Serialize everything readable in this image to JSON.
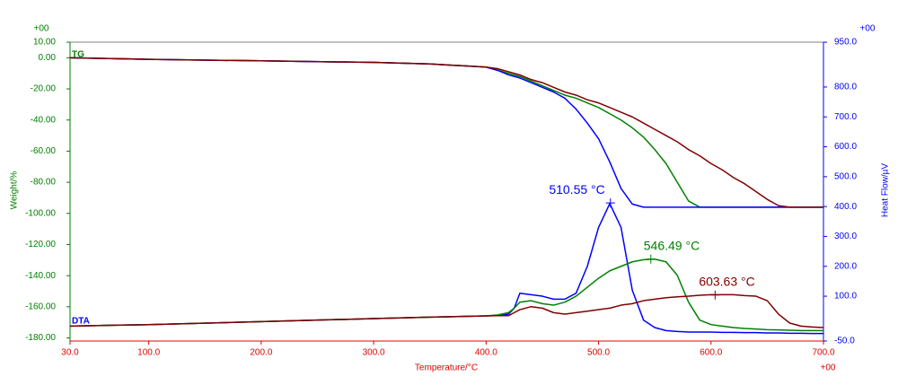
{
  "chart_data": {
    "type": "line",
    "x_axis_label": "Temperature/°C",
    "y_axis_label": "Weight/%",
    "y2_axis_label": "Heat Flow/µV",
    "x_exponent": "+00",
    "y_exponent": "+00",
    "y2_exponent": "+00",
    "tg_label": "TG",
    "dta_label": "DTA",
    "xlim": [
      30,
      700
    ],
    "ylim": [
      -182,
      10
    ],
    "y2lim": [
      -50,
      950
    ],
    "xticks": [
      {
        "value": 30,
        "label": "30.0"
      },
      {
        "value": 100,
        "label": "100.0"
      },
      {
        "value": 200,
        "label": "200.0"
      },
      {
        "value": 300,
        "label": "300.0"
      },
      {
        "value": 400,
        "label": "400.0"
      },
      {
        "value": 500,
        "label": "500.0"
      },
      {
        "value": 600,
        "label": "600.0"
      },
      {
        "value": 700,
        "label": "700.0"
      }
    ],
    "yticks": [
      {
        "value": 10,
        "label": "10.00"
      },
      {
        "value": 0,
        "label": "0.00"
      },
      {
        "value": -20,
        "label": "-20.00"
      },
      {
        "value": -40,
        "label": "-40.00"
      },
      {
        "value": -60,
        "label": "-60.00"
      },
      {
        "value": -80,
        "label": "-80.00"
      },
      {
        "value": -100,
        "label": "-100.00"
      },
      {
        "value": -120,
        "label": "-120.00"
      },
      {
        "value": -140,
        "label": "-140.00"
      },
      {
        "value": -160,
        "label": "-160.00"
      },
      {
        "value": -180,
        "label": "-180.00"
      }
    ],
    "y2ticks": [
      {
        "value": 950,
        "label": "950.0"
      },
      {
        "value": 800,
        "label": "800.0"
      },
      {
        "value": 700,
        "label": "700.0"
      },
      {
        "value": 600,
        "label": "600.0"
      },
      {
        "value": 500,
        "label": "500.0"
      },
      {
        "value": 400,
        "label": "400.0"
      },
      {
        "value": 300,
        "label": "300.0"
      },
      {
        "value": 200,
        "label": "200.0"
      },
      {
        "value": 100,
        "label": "100.0"
      },
      {
        "value": -50,
        "label": "-50.0"
      }
    ],
    "x": [
      30,
      100,
      200,
      300,
      350,
      400,
      410,
      420,
      425,
      430,
      440,
      450,
      460,
      470,
      480,
      490,
      500,
      510,
      520,
      530,
      540,
      550,
      560,
      570,
      580,
      590,
      600,
      610,
      620,
      630,
      640,
      650,
      660,
      670,
      680,
      690,
      700
    ],
    "series": [
      {
        "color": "#008000",
        "axis": "y",
        "values": [
          0,
          -1,
          -2,
          -3,
          -4,
          -6,
          -8,
          -10,
          -11,
          -12,
          -15,
          -18,
          -21,
          -24,
          -26,
          -29,
          -32,
          -36,
          -40,
          -45,
          -51,
          -59,
          -68,
          -80,
          -92,
          -96,
          -96,
          -96,
          -96,
          -96,
          -96,
          -96,
          -96,
          -96,
          -96,
          -96,
          -96
        ]
      },
      {
        "color": "#0000ff",
        "axis": "y",
        "values": [
          0,
          -1,
          -2,
          -3,
          -4,
          -6,
          -8,
          -11,
          -12,
          -13,
          -16,
          -19,
          -22,
          -26,
          -33,
          -42,
          -52,
          -67,
          -84,
          -94,
          -96,
          -96,
          -96,
          -96,
          -96,
          -96,
          -96,
          -96,
          -96,
          -96,
          -96,
          -96,
          -96,
          -96,
          -96,
          -96,
          -96
        ]
      },
      {
        "color": "#800000",
        "axis": "y",
        "values": [
          0,
          -1,
          -2,
          -3,
          -4,
          -6,
          -7,
          -9,
          -10,
          -11,
          -14,
          -16,
          -19,
          -22,
          -24,
          -27,
          -29,
          -32,
          -35,
          -38,
          -42,
          -46,
          -50,
          -54,
          -59,
          -63,
          -68,
          -72,
          -77,
          -81,
          -86,
          -91,
          -95,
          -96,
          -96,
          -96,
          -96
        ]
      },
      {
        "color": "#0000ff",
        "axis": "y2",
        "values": [
          0,
          5,
          15,
          25,
          30,
          34,
          36,
          40,
          60,
          110,
          105,
          100,
          90,
          90,
          110,
          200,
          330,
          410,
          330,
          120,
          20,
          -5,
          -15,
          -18,
          -20,
          -20,
          -20,
          -21,
          -21,
          -22,
          -22,
          -23,
          -23,
          -24,
          -24,
          -25,
          -25
        ]
      },
      {
        "color": "#008000",
        "axis": "y2",
        "values": [
          0,
          5,
          15,
          25,
          30,
          34,
          37,
          45,
          60,
          80,
          85,
          75,
          70,
          80,
          100,
          130,
          160,
          185,
          200,
          215,
          222,
          224,
          215,
          170,
          80,
          20,
          5,
          0,
          -5,
          -8,
          -10,
          -12,
          -13,
          -14,
          -15,
          -15,
          -15
        ]
      },
      {
        "color": "#800000",
        "axis": "y2",
        "values": [
          0,
          5,
          15,
          25,
          30,
          34,
          35,
          35,
          45,
          55,
          65,
          60,
          45,
          40,
          45,
          50,
          55,
          60,
          70,
          75,
          85,
          90,
          95,
          98,
          100,
          103,
          105,
          105,
          105,
          102,
          100,
          85,
          40,
          10,
          0,
          -3,
          -5
        ]
      }
    ],
    "annotations": [
      {
        "text": "510.55 °C",
        "x": 510.55,
        "y": 412,
        "color": "#0000ff"
      },
      {
        "text": "546.49 °C",
        "x": 546.49,
        "y": 224,
        "color": "#008000"
      },
      {
        "text": "603.63 °C",
        "x": 603.63,
        "y": 104,
        "color": "#800000"
      }
    ]
  }
}
